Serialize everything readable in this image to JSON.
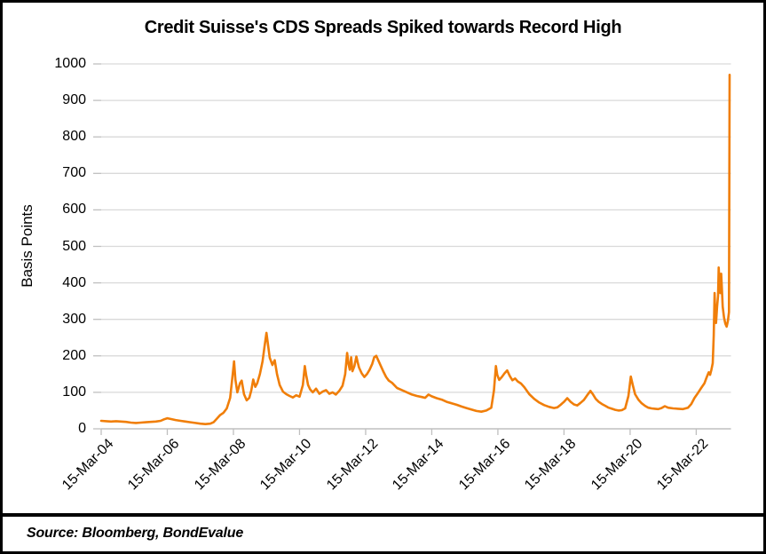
{
  "chart_data": {
    "type": "line",
    "title": "Credit Suisse's CDS Spreads Spiked towards Record High",
    "ylabel": "Basis Points",
    "source_note": "Source: Bloomberg, BondEvalue",
    "ylim": [
      0,
      1000
    ],
    "y_ticks": [
      0,
      100,
      200,
      300,
      400,
      500,
      600,
      700,
      800,
      900,
      1000
    ],
    "x_domain": [
      2004.2,
      2023.25
    ],
    "x_tick_years": [
      2004.2,
      2006.2,
      2008.2,
      2010.2,
      2012.2,
      2014.2,
      2016.2,
      2018.2,
      2020.2,
      2022.2
    ],
    "x_tick_labels": [
      "15-Mar-04",
      "15-Mar-06",
      "15-Mar-08",
      "15-Mar-10",
      "15-Mar-12",
      "15-Mar-14",
      "15-Mar-16",
      "15-Mar-18",
      "15-Mar-20",
      "15-Mar-22"
    ],
    "grid": "horizontal",
    "legend": "none",
    "line_color": "#F07E09",
    "gridline_color": "#D9D9D9",
    "axis_color": "#BFBFBF",
    "series": [
      {
        "points": [
          [
            2004.2,
            22
          ],
          [
            2004.35,
            21
          ],
          [
            2004.5,
            20
          ],
          [
            2004.65,
            21
          ],
          [
            2004.8,
            20
          ],
          [
            2004.95,
            19
          ],
          [
            2005.1,
            17
          ],
          [
            2005.25,
            16
          ],
          [
            2005.4,
            17
          ],
          [
            2005.55,
            18
          ],
          [
            2005.7,
            19
          ],
          [
            2005.85,
            20
          ],
          [
            2006.0,
            22
          ],
          [
            2006.1,
            26
          ],
          [
            2006.2,
            29
          ],
          [
            2006.3,
            27
          ],
          [
            2006.45,
            24
          ],
          [
            2006.6,
            22
          ],
          [
            2006.75,
            20
          ],
          [
            2006.9,
            18
          ],
          [
            2007.05,
            16
          ],
          [
            2007.2,
            14
          ],
          [
            2007.35,
            13
          ],
          [
            2007.5,
            14
          ],
          [
            2007.6,
            18
          ],
          [
            2007.7,
            28
          ],
          [
            2007.8,
            38
          ],
          [
            2007.9,
            44
          ],
          [
            2008.0,
            56
          ],
          [
            2008.1,
            85
          ],
          [
            2008.18,
            150
          ],
          [
            2008.22,
            185
          ],
          [
            2008.26,
            135
          ],
          [
            2008.32,
            100
          ],
          [
            2008.4,
            125
          ],
          [
            2008.45,
            132
          ],
          [
            2008.52,
            95
          ],
          [
            2008.6,
            78
          ],
          [
            2008.68,
            85
          ],
          [
            2008.74,
            105
          ],
          [
            2008.8,
            135
          ],
          [
            2008.86,
            115
          ],
          [
            2008.92,
            125
          ],
          [
            2009.0,
            150
          ],
          [
            2009.08,
            185
          ],
          [
            2009.14,
            225
          ],
          [
            2009.2,
            263
          ],
          [
            2009.24,
            235
          ],
          [
            2009.3,
            195
          ],
          [
            2009.38,
            175
          ],
          [
            2009.45,
            188
          ],
          [
            2009.52,
            150
          ],
          [
            2009.6,
            120
          ],
          [
            2009.7,
            102
          ],
          [
            2009.8,
            95
          ],
          [
            2009.9,
            90
          ],
          [
            2010.0,
            86
          ],
          [
            2010.1,
            92
          ],
          [
            2010.2,
            88
          ],
          [
            2010.3,
            120
          ],
          [
            2010.36,
            172
          ],
          [
            2010.4,
            148
          ],
          [
            2010.46,
            120
          ],
          [
            2010.52,
            108
          ],
          [
            2010.6,
            100
          ],
          [
            2010.7,
            110
          ],
          [
            2010.8,
            96
          ],
          [
            2010.9,
            102
          ],
          [
            2011.0,
            106
          ],
          [
            2011.1,
            96
          ],
          [
            2011.2,
            100
          ],
          [
            2011.3,
            94
          ],
          [
            2011.4,
            104
          ],
          [
            2011.5,
            118
          ],
          [
            2011.58,
            150
          ],
          [
            2011.64,
            208
          ],
          [
            2011.68,
            178
          ],
          [
            2011.72,
            162
          ],
          [
            2011.76,
            196
          ],
          [
            2011.8,
            158
          ],
          [
            2011.86,
            172
          ],
          [
            2011.92,
            198
          ],
          [
            2011.96,
            182
          ],
          [
            2012.0,
            168
          ],
          [
            2012.08,
            152
          ],
          [
            2012.16,
            142
          ],
          [
            2012.24,
            150
          ],
          [
            2012.32,
            162
          ],
          [
            2012.4,
            178
          ],
          [
            2012.46,
            196
          ],
          [
            2012.52,
            200
          ],
          [
            2012.58,
            188
          ],
          [
            2012.66,
            172
          ],
          [
            2012.74,
            156
          ],
          [
            2012.82,
            142
          ],
          [
            2012.9,
            132
          ],
          [
            2013.0,
            126
          ],
          [
            2013.15,
            112
          ],
          [
            2013.3,
            106
          ],
          [
            2013.45,
            100
          ],
          [
            2013.6,
            94
          ],
          [
            2013.75,
            90
          ],
          [
            2013.9,
            87
          ],
          [
            2014.0,
            85
          ],
          [
            2014.1,
            94
          ],
          [
            2014.2,
            89
          ],
          [
            2014.35,
            84
          ],
          [
            2014.5,
            80
          ],
          [
            2014.65,
            74
          ],
          [
            2014.8,
            70
          ],
          [
            2014.95,
            66
          ],
          [
            2015.1,
            61
          ],
          [
            2015.25,
            57
          ],
          [
            2015.4,
            53
          ],
          [
            2015.55,
            49
          ],
          [
            2015.7,
            47
          ],
          [
            2015.85,
            50
          ],
          [
            2016.0,
            58
          ],
          [
            2016.08,
            105
          ],
          [
            2016.14,
            172
          ],
          [
            2016.18,
            148
          ],
          [
            2016.24,
            134
          ],
          [
            2016.32,
            142
          ],
          [
            2016.4,
            152
          ],
          [
            2016.48,
            160
          ],
          [
            2016.56,
            145
          ],
          [
            2016.64,
            133
          ],
          [
            2016.72,
            138
          ],
          [
            2016.8,
            130
          ],
          [
            2016.9,
            124
          ],
          [
            2017.0,
            114
          ],
          [
            2017.15,
            95
          ],
          [
            2017.3,
            82
          ],
          [
            2017.45,
            72
          ],
          [
            2017.6,
            65
          ],
          [
            2017.75,
            60
          ],
          [
            2017.9,
            57
          ],
          [
            2018.0,
            59
          ],
          [
            2018.1,
            66
          ],
          [
            2018.2,
            74
          ],
          [
            2018.3,
            84
          ],
          [
            2018.4,
            74
          ],
          [
            2018.5,
            67
          ],
          [
            2018.6,
            64
          ],
          [
            2018.7,
            71
          ],
          [
            2018.8,
            79
          ],
          [
            2018.9,
            92
          ],
          [
            2019.0,
            104
          ],
          [
            2019.08,
            94
          ],
          [
            2019.16,
            82
          ],
          [
            2019.25,
            74
          ],
          [
            2019.35,
            68
          ],
          [
            2019.45,
            63
          ],
          [
            2019.55,
            58
          ],
          [
            2019.65,
            55
          ],
          [
            2019.75,
            52
          ],
          [
            2019.85,
            50
          ],
          [
            2019.95,
            51
          ],
          [
            2020.05,
            56
          ],
          [
            2020.15,
            90
          ],
          [
            2020.22,
            143
          ],
          [
            2020.28,
            120
          ],
          [
            2020.35,
            95
          ],
          [
            2020.45,
            80
          ],
          [
            2020.55,
            70
          ],
          [
            2020.65,
            63
          ],
          [
            2020.75,
            58
          ],
          [
            2020.85,
            56
          ],
          [
            2020.95,
            55
          ],
          [
            2021.05,
            54
          ],
          [
            2021.15,
            57
          ],
          [
            2021.25,
            62
          ],
          [
            2021.35,
            58
          ],
          [
            2021.5,
            56
          ],
          [
            2021.65,
            55
          ],
          [
            2021.8,
            54
          ],
          [
            2021.95,
            58
          ],
          [
            2022.05,
            68
          ],
          [
            2022.15,
            85
          ],
          [
            2022.25,
            98
          ],
          [
            2022.35,
            112
          ],
          [
            2022.45,
            125
          ],
          [
            2022.52,
            142
          ],
          [
            2022.58,
            155
          ],
          [
            2022.62,
            148
          ],
          [
            2022.66,
            162
          ],
          [
            2022.7,
            180
          ],
          [
            2022.73,
            255
          ],
          [
            2022.755,
            372
          ],
          [
            2022.775,
            315
          ],
          [
            2022.8,
            290
          ],
          [
            2022.83,
            335
          ],
          [
            2022.86,
            365
          ],
          [
            2022.88,
            442
          ],
          [
            2022.9,
            405
          ],
          [
            2022.93,
            372
          ],
          [
            2022.955,
            425
          ],
          [
            2022.975,
            385
          ],
          [
            2023.0,
            335
          ],
          [
            2023.04,
            305
          ],
          [
            2023.08,
            288
          ],
          [
            2023.12,
            280
          ],
          [
            2023.16,
            296
          ],
          [
            2023.19,
            320
          ],
          [
            2023.21,
            970
          ]
        ]
      }
    ]
  }
}
